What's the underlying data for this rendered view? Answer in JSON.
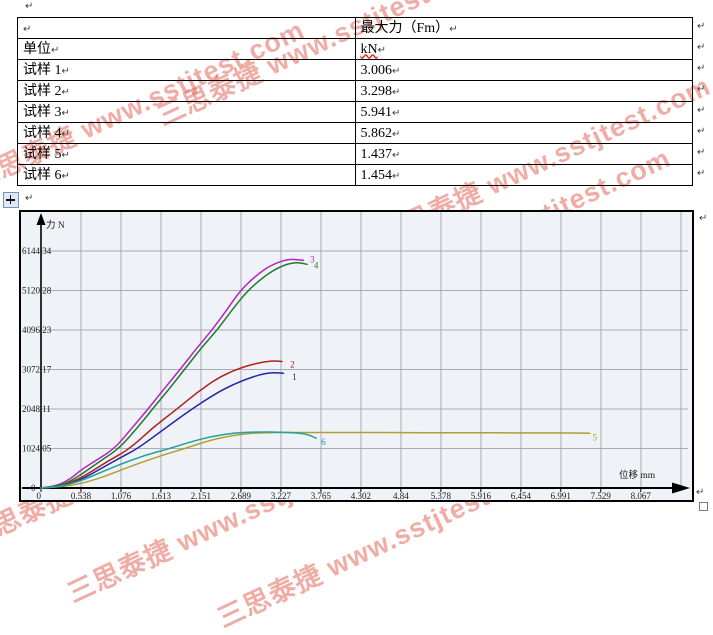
{
  "formatting_marks": {
    "pilcrow": "↵"
  },
  "watermark": {
    "text": "三思泰捷 www.sstjtest.com",
    "color": "#e05c4e",
    "streams": [
      [
        -36,
        162
      ],
      [
        150,
        98
      ],
      [
        370,
        218
      ],
      [
        330,
        290
      ],
      [
        -40,
        520
      ],
      [
        60,
        575
      ],
      [
        210,
        600
      ]
    ]
  },
  "table": {
    "header": [
      "",
      "最大力（Fm）"
    ],
    "rows": [
      [
        "单位",
        "kN"
      ],
      [
        "试样 1",
        "3.006"
      ],
      [
        "试样 2",
        "3.298"
      ],
      [
        "试样 3",
        "5.941"
      ],
      [
        "试样 4",
        "5.862"
      ],
      [
        "试样 5",
        "1.437"
      ],
      [
        "试样 6",
        "1.454"
      ]
    ],
    "wavy_underlined_value": "kN"
  },
  "chart_data": {
    "type": "line",
    "title": "",
    "xlabel": "位移 mm",
    "ylabel": "力 N",
    "grid": true,
    "xlim": [
      0,
      8.75
    ],
    "ylim": [
      0,
      7170
    ],
    "x_tick_labels": [
      "0",
      "0.538",
      "1.076",
      "1.613",
      "2.151",
      "2.689",
      "3.227",
      "3.765",
      "4.302",
      "4.84",
      "5.378",
      "5.916",
      "6.454",
      "6.991",
      "7.529",
      "8.067"
    ],
    "x_ticks": [
      0,
      0.538,
      1.076,
      1.613,
      2.151,
      2.689,
      3.227,
      3.765,
      4.302,
      4.84,
      5.378,
      5.916,
      6.454,
      6.991,
      7.529,
      8.067
    ],
    "y_tick_labels": [
      "0",
      "1024.05",
      "2048.11",
      "3072.17",
      "4096.23",
      "5120.28",
      "6144.34"
    ],
    "y_ticks": [
      0,
      1024.05,
      2048.11,
      3072.17,
      4096.23,
      5120.28,
      6144.34
    ],
    "series": [
      {
        "name": "试样1",
        "label": "1",
        "color": "#2323aa",
        "label_at": [
          3.38,
          2800
        ],
        "points": [
          [
            0,
            0
          ],
          [
            0.2,
            20
          ],
          [
            0.4,
            110
          ],
          [
            0.6,
            280
          ],
          [
            0.85,
            550
          ],
          [
            1.08,
            800
          ],
          [
            1.3,
            1024
          ],
          [
            1.6,
            1450
          ],
          [
            2.03,
            2048
          ],
          [
            2.35,
            2450
          ],
          [
            2.6,
            2700
          ],
          [
            2.9,
            2920
          ],
          [
            3.1,
            2995
          ],
          [
            3.26,
            2975
          ]
        ]
      },
      {
        "name": "试样2",
        "label": "2",
        "color": "#b02020",
        "label_at": [
          3.35,
          3120
        ],
        "points": [
          [
            0,
            0
          ],
          [
            0.2,
            30
          ],
          [
            0.4,
            140
          ],
          [
            0.6,
            330
          ],
          [
            0.9,
            700
          ],
          [
            1.2,
            1024
          ],
          [
            1.5,
            1560
          ],
          [
            1.83,
            2048
          ],
          [
            2.1,
            2480
          ],
          [
            2.4,
            2880
          ],
          [
            2.7,
            3130
          ],
          [
            2.95,
            3255
          ],
          [
            3.12,
            3298
          ],
          [
            3.24,
            3280
          ]
        ]
      },
      {
        "name": "试样3",
        "label": "3",
        "color": "#b822c0",
        "label_at": [
          3.62,
          5840
        ],
        "points": [
          [
            0,
            0
          ],
          [
            0.2,
            40
          ],
          [
            0.4,
            240
          ],
          [
            0.54,
            470
          ],
          [
            0.75,
            730
          ],
          [
            0.99,
            1024
          ],
          [
            1.2,
            1500
          ],
          [
            1.44,
            2048
          ],
          [
            1.65,
            2560
          ],
          [
            1.87,
            3072
          ],
          [
            2.1,
            3640
          ],
          [
            2.3,
            4096
          ],
          [
            2.5,
            4620
          ],
          [
            2.68,
            5120
          ],
          [
            2.9,
            5520
          ],
          [
            3.1,
            5790
          ],
          [
            3.33,
            5941
          ],
          [
            3.53,
            5900
          ]
        ]
      },
      {
        "name": "试样4",
        "label": "4",
        "color": "#1f7a2e",
        "label_at": [
          3.67,
          5690
        ],
        "points": [
          [
            0,
            0
          ],
          [
            0.25,
            40
          ],
          [
            0.45,
            240
          ],
          [
            0.6,
            430
          ],
          [
            0.82,
            730
          ],
          [
            1.05,
            1024
          ],
          [
            1.27,
            1500
          ],
          [
            1.5,
            2048
          ],
          [
            1.72,
            2560
          ],
          [
            1.93,
            3072
          ],
          [
            2.16,
            3640
          ],
          [
            2.37,
            4096
          ],
          [
            2.57,
            4620
          ],
          [
            2.78,
            5120
          ],
          [
            3.0,
            5480
          ],
          [
            3.2,
            5730
          ],
          [
            3.42,
            5862
          ],
          [
            3.58,
            5800
          ]
        ]
      },
      {
        "name": "试样5",
        "label": "5",
        "color": "#b0a030",
        "label_at": [
          7.42,
          1230
        ],
        "points": [
          [
            0,
            0
          ],
          [
            0.3,
            30
          ],
          [
            0.6,
            140
          ],
          [
            0.9,
            330
          ],
          [
            1.2,
            560
          ],
          [
            1.6,
            830
          ],
          [
            1.94,
            1024
          ],
          [
            2.3,
            1260
          ],
          [
            2.7,
            1400
          ],
          [
            3.0,
            1437
          ],
          [
            3.4,
            1442
          ],
          [
            4.0,
            1436
          ],
          [
            4.6,
            1440
          ],
          [
            5.2,
            1430
          ],
          [
            5.8,
            1434
          ],
          [
            6.4,
            1428
          ],
          [
            7.0,
            1430
          ],
          [
            7.38,
            1422
          ]
        ]
      },
      {
        "name": "试样6",
        "label": "6",
        "color": "#20a0a4",
        "label_at": [
          3.77,
          1120
        ],
        "points": [
          [
            0,
            0
          ],
          [
            0.25,
            30
          ],
          [
            0.5,
            160
          ],
          [
            0.75,
            360
          ],
          [
            1.1,
            640
          ],
          [
            1.4,
            850
          ],
          [
            1.73,
            1024
          ],
          [
            2.0,
            1190
          ],
          [
            2.3,
            1340
          ],
          [
            2.6,
            1430
          ],
          [
            2.9,
            1454
          ],
          [
            3.2,
            1450
          ],
          [
            3.45,
            1430
          ],
          [
            3.6,
            1380
          ],
          [
            3.7,
            1290
          ]
        ]
      }
    ]
  }
}
